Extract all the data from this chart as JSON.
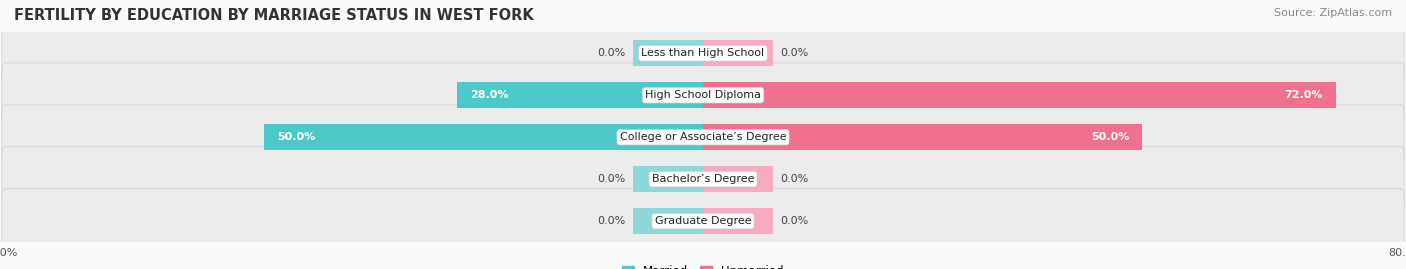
{
  "title": "FERTILITY BY EDUCATION BY MARRIAGE STATUS IN WEST FORK",
  "source": "Source: ZipAtlas.com",
  "categories": [
    "Less than High School",
    "High School Diploma",
    "College or Associate’s Degree",
    "Bachelor’s Degree",
    "Graduate Degree"
  ],
  "married_values": [
    0.0,
    28.0,
    50.0,
    0.0,
    0.0
  ],
  "unmarried_values": [
    0.0,
    72.0,
    50.0,
    0.0,
    0.0
  ],
  "married_color": "#4DC8C8",
  "unmarried_color": "#F07090",
  "married_stub_color": "#90D8D8",
  "unmarried_stub_color": "#F8AABF",
  "row_bg_color": "#EBEBEB",
  "background_color": "#FAFAFA",
  "xlim": 80.0,
  "stub_size": 8.0,
  "title_fontsize": 10.5,
  "label_fontsize": 8.0,
  "source_fontsize": 8.0,
  "legend_fontsize": 8.5,
  "bar_height": 0.62,
  "value_label_inside_threshold": 12.0
}
